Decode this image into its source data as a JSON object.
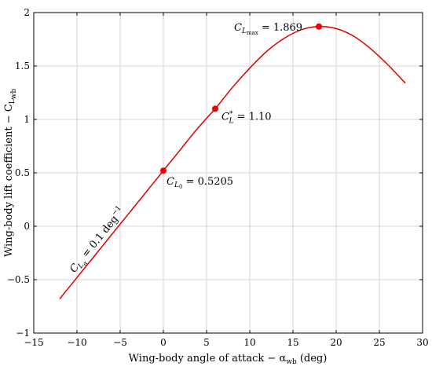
{
  "chart_data": {
    "type": "line",
    "xlabel": "Wing-body angle of attack − α",
    "xlabel_sub": "wb",
    "xlabel_unit": " (deg)",
    "ylabel": "Wing-body lift coefficient − C",
    "ylabel_sub": "L",
    "ylabel_sub2": "wb",
    "xlim": [
      -15,
      30
    ],
    "ylim": [
      -1,
      2
    ],
    "xticks": [
      -15,
      -10,
      -5,
      0,
      5,
      10,
      15,
      20,
      25,
      30
    ],
    "xtick_labels": [
      "−15",
      "−10",
      "−5",
      "0",
      "5",
      "10",
      "15",
      "20",
      "25",
      "30"
    ],
    "yticks": [
      -1,
      -0.5,
      0,
      0.5,
      1,
      1.5,
      2
    ],
    "ytick_labels": [
      "−1",
      "−0.5",
      "0",
      "0.5",
      "1",
      "1.5",
      "2"
    ],
    "grid": true,
    "color": "#e00000",
    "series": [
      {
        "x": [
          -12,
          -10,
          -8,
          -6,
          -4,
          -2,
          0,
          2,
          4,
          6,
          8,
          10,
          12,
          14,
          16,
          18,
          20,
          22,
          24,
          26,
          28
        ],
        "y": [
          -0.68,
          -0.48,
          -0.28,
          -0.08,
          0.12,
          0.32,
          0.52,
          0.72,
          0.92,
          1.1,
          1.3,
          1.48,
          1.64,
          1.76,
          1.84,
          1.869,
          1.85,
          1.78,
          1.66,
          1.51,
          1.34
        ]
      }
    ],
    "points": [
      {
        "x": 0,
        "y": 0.5205,
        "label_main": "C",
        "label_sub": "L",
        "label_sub2": "0",
        "label_value": " = 0.5205"
      },
      {
        "x": 6,
        "y": 1.1,
        "label_main": "C",
        "label_sup": "*",
        "label_sub": "L",
        "label_value": " = 1.10"
      },
      {
        "x": 18,
        "y": 1.869,
        "label_main": "C",
        "label_sub": "L",
        "label_sub2": "max",
        "label_value": " = 1.869"
      }
    ],
    "slope_annotation": {
      "main": "C",
      "sub": "L",
      "sub2": "α",
      "value": " = 0.1 deg",
      "sup": "−1"
    }
  }
}
